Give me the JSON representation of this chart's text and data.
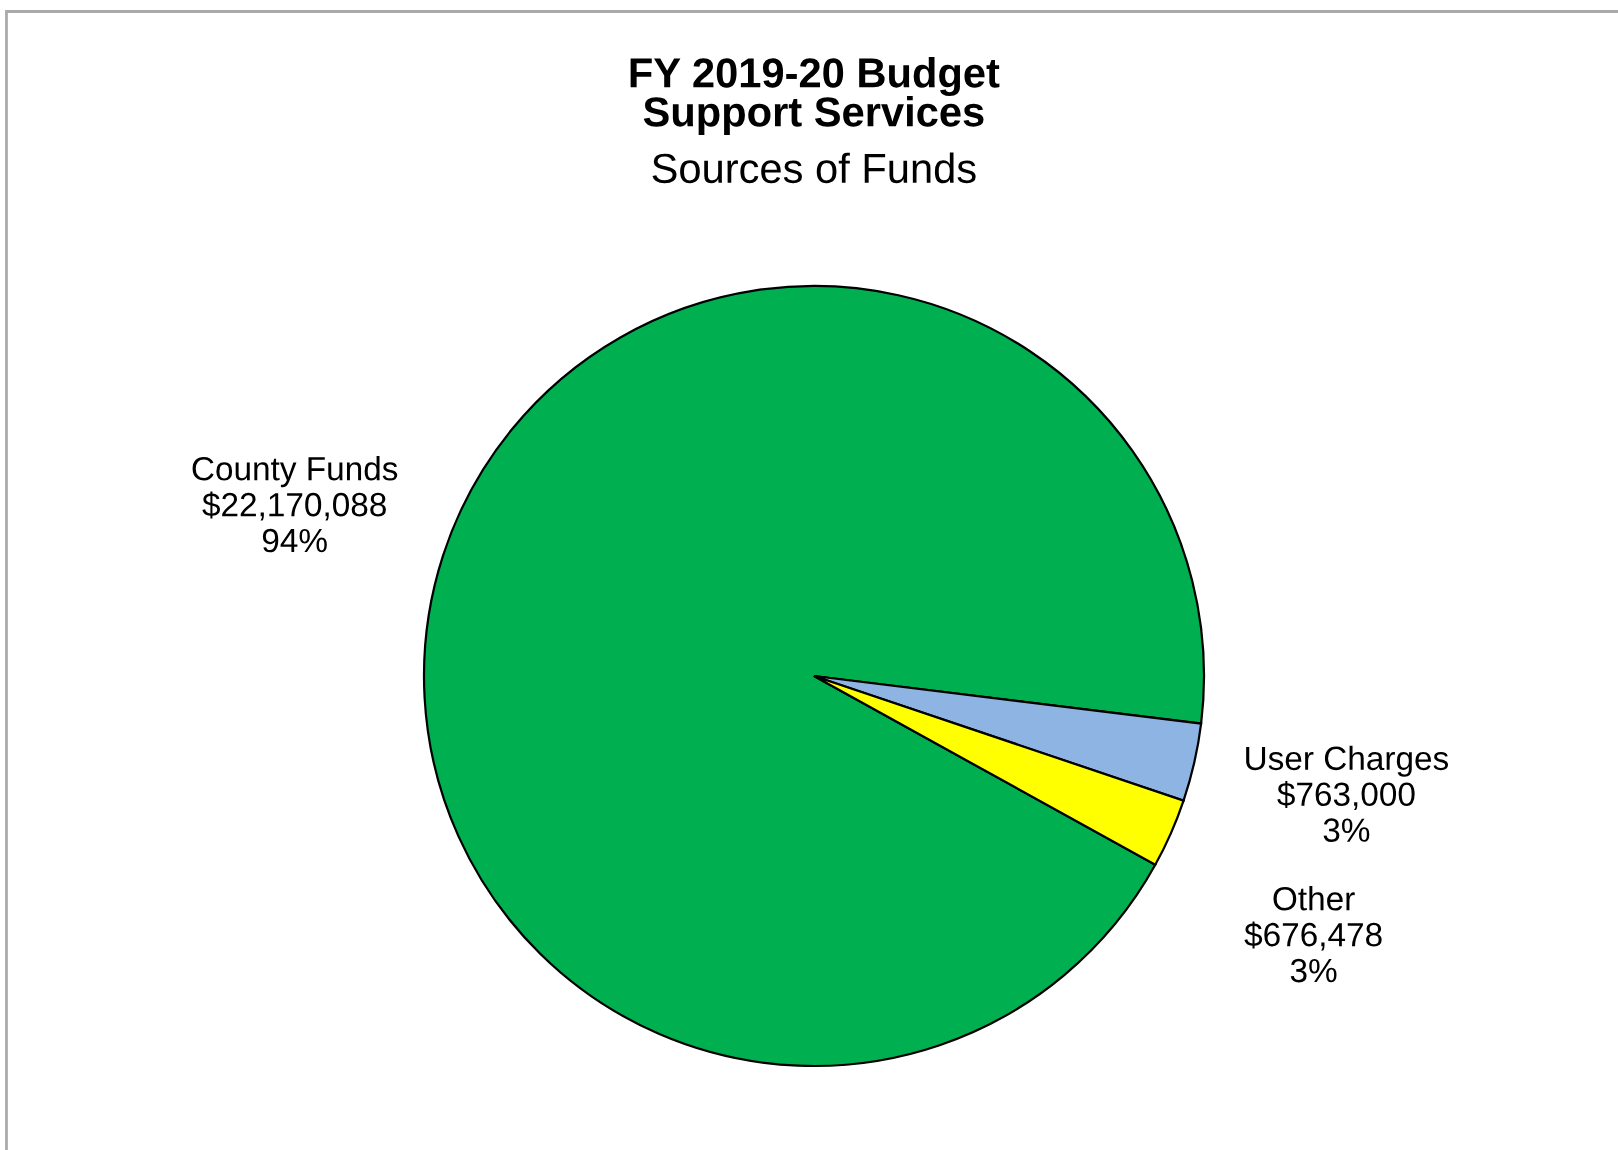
{
  "chart_data": {
    "type": "pie",
    "title": "FY 2019-20 Budget\nSupport Services",
    "subtitle": "Sources of Funds",
    "categories": [
      "County Funds",
      "User Charges",
      "Other"
    ],
    "values": [
      22170088,
      763000,
      676478
    ],
    "value_labels": [
      "$22,170,088\n94%",
      "$763,000\n3%",
      "$676,478\n3%"
    ],
    "colors": [
      "#00b050",
      "#8eb4e3",
      "#ffff00"
    ],
    "legend": false
  }
}
